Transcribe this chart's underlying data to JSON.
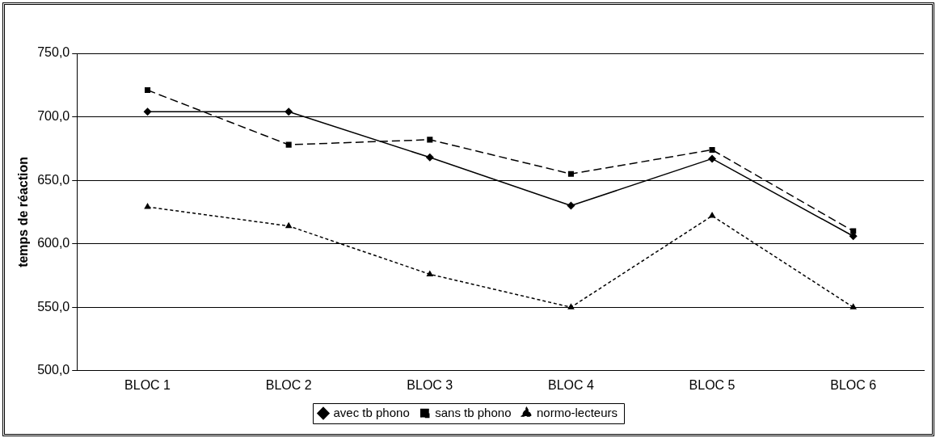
{
  "chart_data": {
    "type": "line",
    "ylabel": "temps de réaction",
    "categories": [
      "BLOC 1",
      "BLOC 2",
      "BLOC 3",
      "BLOC 4",
      "BLOC 5",
      "BLOC 6"
    ],
    "series": [
      {
        "name": "avec tb phono",
        "color": "#000000",
        "marker": "diamond",
        "line_style": "solid",
        "values": [
          704,
          704,
          668,
          630,
          667,
          606
        ]
      },
      {
        "name": "sans tb phono",
        "color": "#000000",
        "marker": "square",
        "line_style": "dashed",
        "values": [
          721,
          678,
          682,
          655,
          674,
          610
        ]
      },
      {
        "name": "normo-lecteurs",
        "color": "#000000",
        "marker": "triangle",
        "line_style": "dotted",
        "values": [
          629,
          614,
          576,
          550,
          622,
          550
        ]
      }
    ],
    "ylim": [
      500,
      750
    ],
    "yticks": [
      {
        "value": 500,
        "label": "500,0"
      },
      {
        "value": 550,
        "label": "550,0"
      },
      {
        "value": 600,
        "label": "600,0"
      },
      {
        "value": 650,
        "label": "650,0"
      },
      {
        "value": 700,
        "label": "700,0"
      },
      {
        "value": 750,
        "label": "750,0"
      }
    ],
    "grid": "y",
    "legend": "bottom"
  }
}
